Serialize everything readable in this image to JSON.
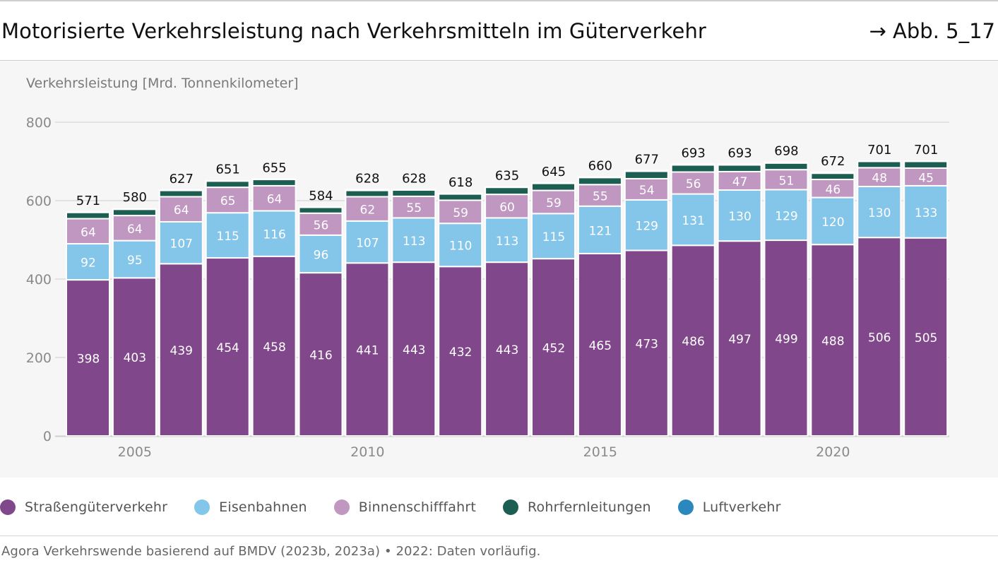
{
  "header": {
    "title": "Motorisierte Verkehrsleistung nach Verkehrsmitteln im Güterverkehr",
    "figure_ref": "→ Abb. 5_17"
  },
  "source": "Agora Verkehrswende basierend auf BMDV (2023b, 2023a) • 2022: Daten vorläufig.",
  "chart_data": {
    "type": "bar",
    "stacked": true,
    "ylabel": "Verkehrsleistung [Mrd. Tonnenkilometer]",
    "ylim": [
      0,
      800
    ],
    "yticks": [
      0,
      200,
      400,
      600,
      800
    ],
    "xticks": [
      2005,
      2010,
      2015,
      2020
    ],
    "grid": true,
    "legend_position": "bottom",
    "x": [
      2004,
      2005,
      2006,
      2007,
      2008,
      2009,
      2010,
      2011,
      2012,
      2013,
      2014,
      2015,
      2016,
      2017,
      2018,
      2019,
      2020,
      2021,
      2022
    ],
    "totals": [
      571,
      580,
      627,
      651,
      655,
      584,
      628,
      628,
      618,
      635,
      645,
      660,
      677,
      693,
      693,
      698,
      672,
      701,
      701
    ],
    "series": [
      {
        "name": "Straßengüterverkehr",
        "color": "#80488a",
        "label_color": "#ffffff",
        "values": [
          398,
          403,
          439,
          454,
          458,
          416,
          441,
          443,
          432,
          443,
          452,
          465,
          473,
          486,
          497,
          499,
          488,
          506,
          505
        ]
      },
      {
        "name": "Eisenbahnen",
        "color": "#84c5ea",
        "label_color": "#ffffff",
        "values": [
          92,
          95,
          107,
          115,
          116,
          96,
          107,
          113,
          110,
          113,
          115,
          121,
          129,
          131,
          130,
          129,
          120,
          130,
          133
        ]
      },
      {
        "name": "Binnenschifffahrt",
        "color": "#bf97c1",
        "label_color": "#ffffff",
        "values": [
          64,
          64,
          64,
          65,
          64,
          56,
          62,
          55,
          59,
          60,
          59,
          55,
          54,
          56,
          47,
          51,
          46,
          48,
          45
        ]
      },
      {
        "name": "Rohrfernleitungen",
        "color": "#1c5e52",
        "label_color": null,
        "values": [
          16,
          16,
          16,
          16,
          16,
          15,
          16,
          16,
          16,
          18,
          18,
          18,
          19,
          18,
          17,
          17,
          16,
          16,
          17
        ]
      },
      {
        "name": "Luftverkehr",
        "color": "#2b88bd",
        "label_color": null,
        "values": [
          1,
          1,
          1,
          1,
          1,
          1,
          2,
          1,
          1,
          1,
          1,
          1,
          2,
          2,
          2,
          2,
          2,
          1,
          1
        ]
      }
    ]
  }
}
